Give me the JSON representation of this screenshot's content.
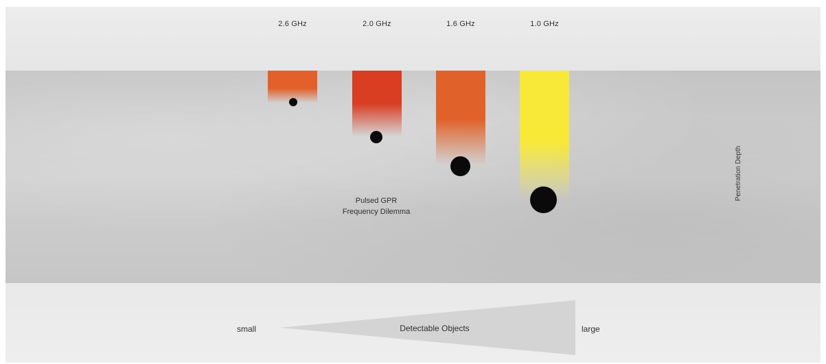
{
  "frequencies": [
    {
      "label": "2.6 GHz",
      "color": "#e3602a"
    },
    {
      "label": "2.0 GHz",
      "color": "#d93d22"
    },
    {
      "label": "1.6 GHz",
      "color": "#e0622a"
    },
    {
      "label": "1.0 GHz",
      "color": "#f8e838"
    }
  ],
  "center_title": {
    "line1": "Pulsed GPR",
    "line2": "Frequency Dilemma"
  },
  "axis_label": "Penetration Depth",
  "objects_scale": {
    "label": "Detectable Objects",
    "min_label": "small",
    "max_label": "large"
  },
  "colors": {
    "concrete": "#c8c8c8",
    "background": "#ececec",
    "object": "#0a0a0a"
  }
}
